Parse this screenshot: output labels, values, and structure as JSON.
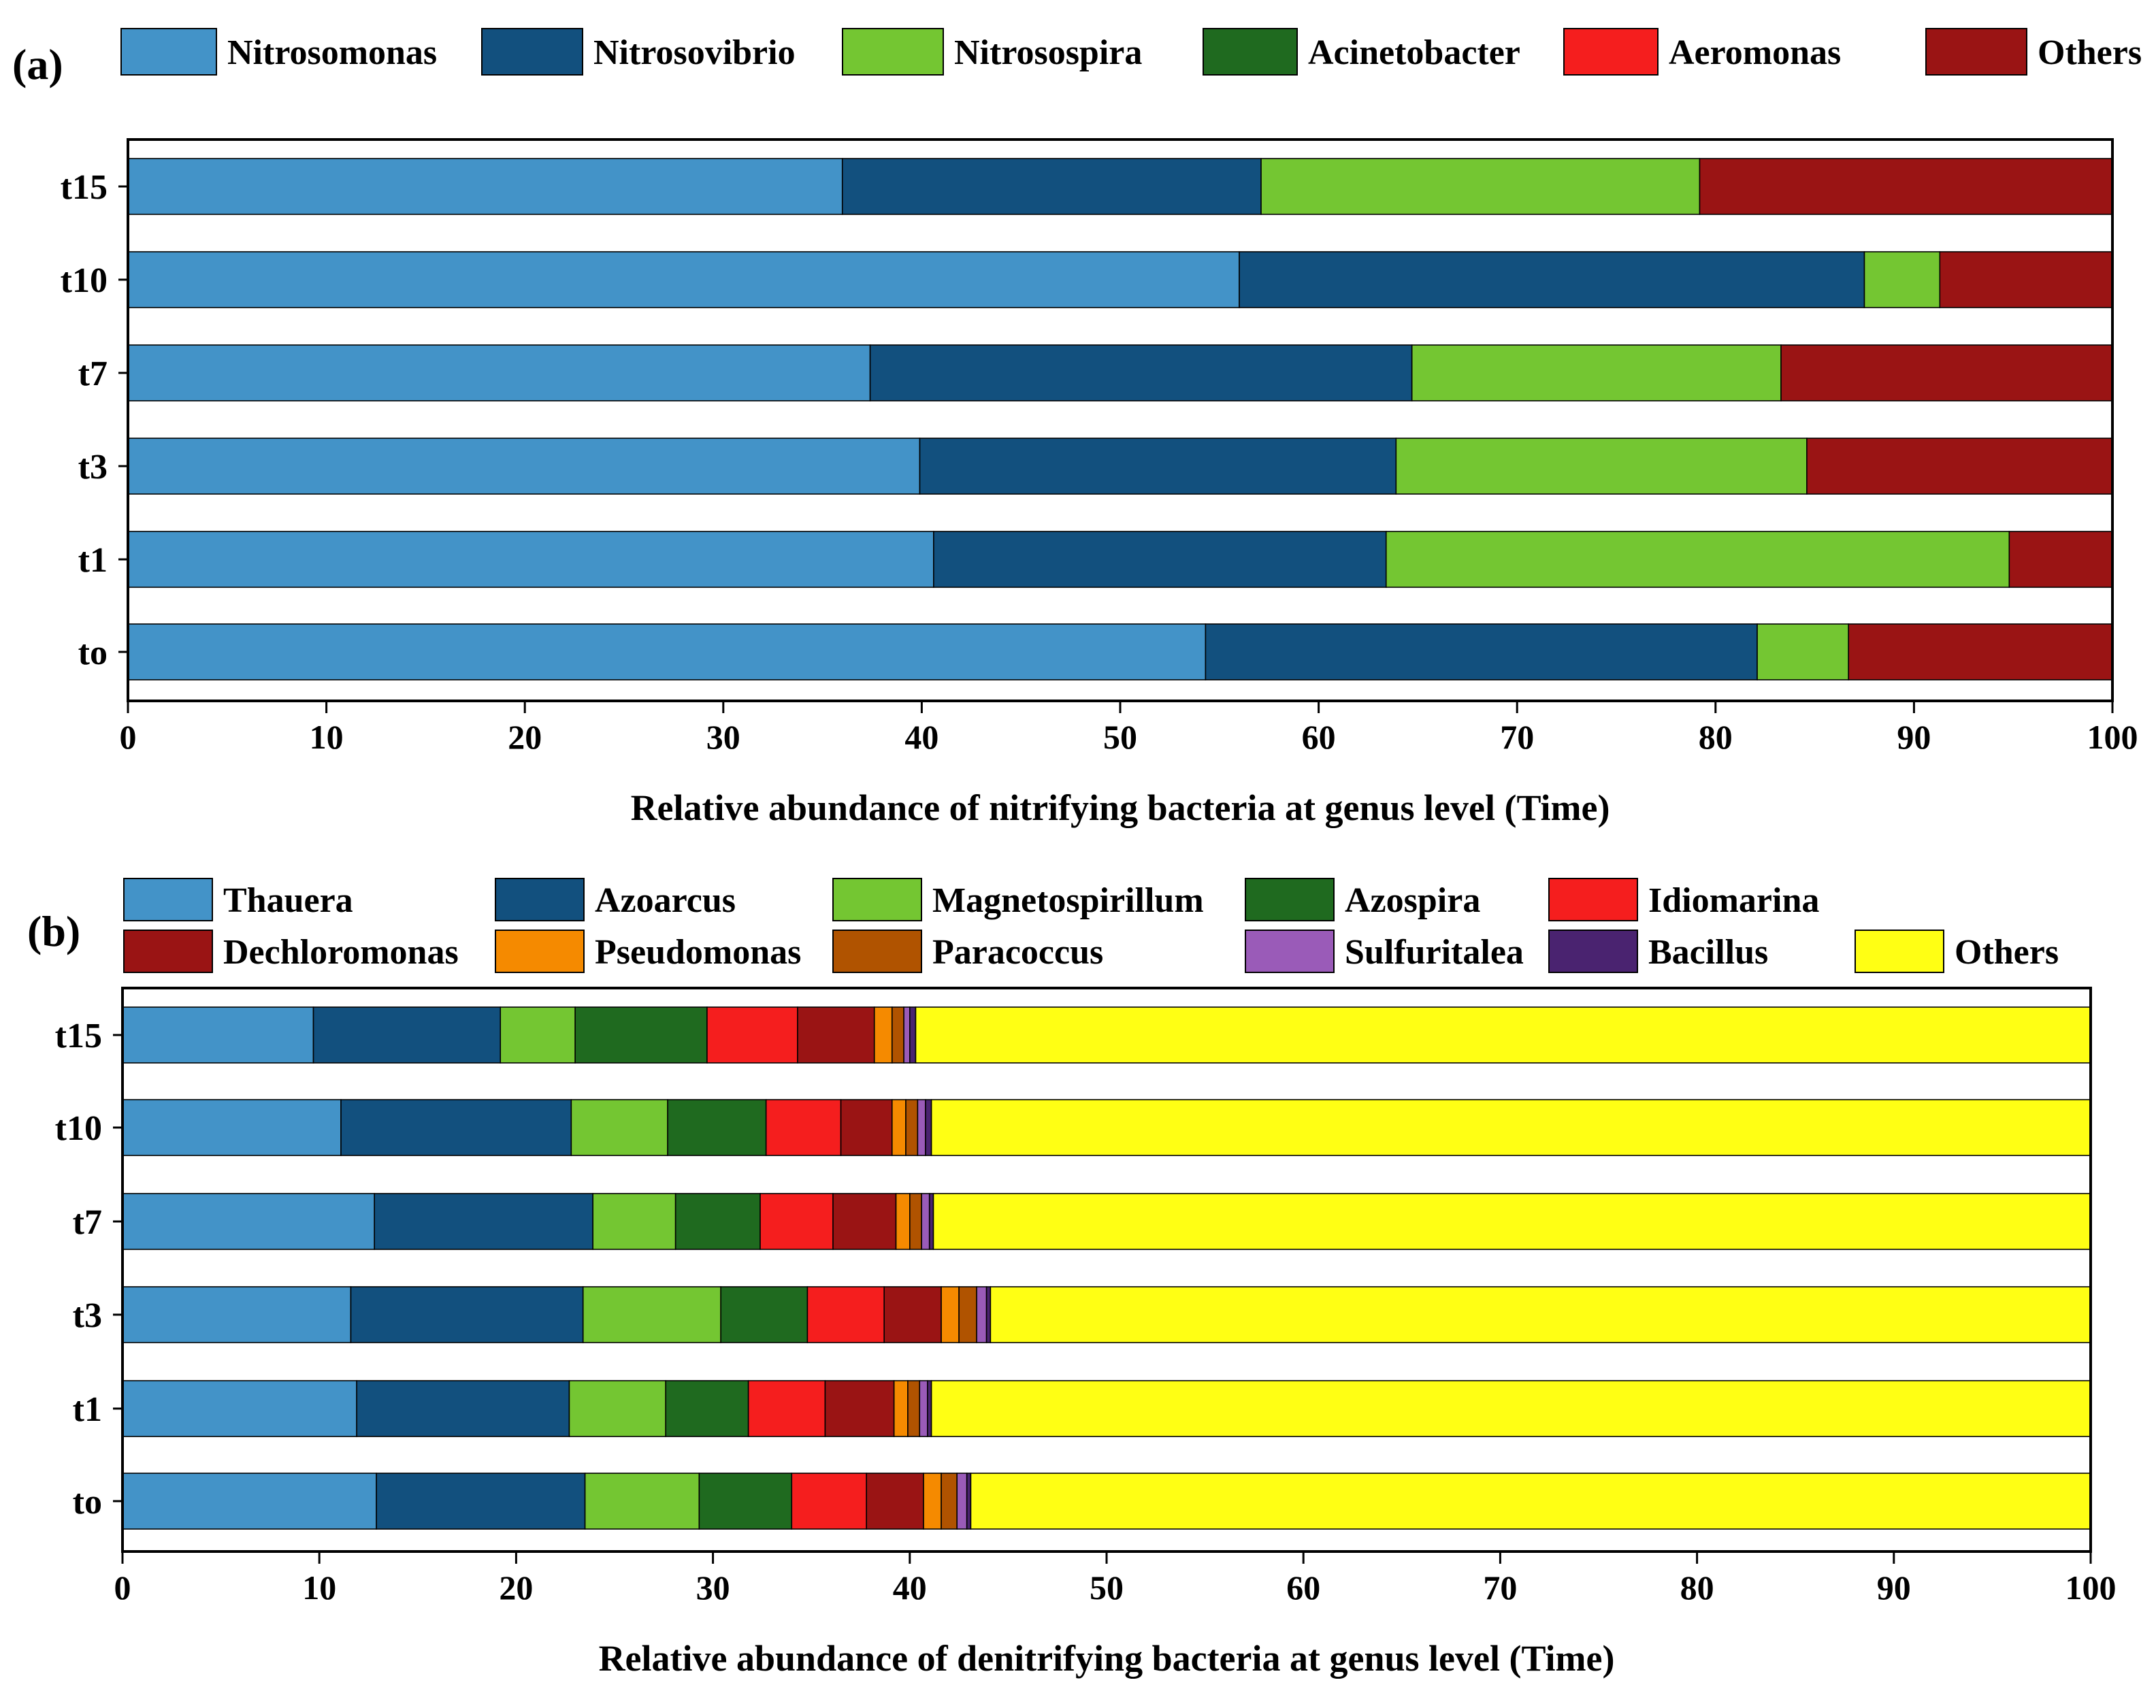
{
  "colors": {
    "Nitrosomonas": "#4393C8",
    "Nitrosovibrio": "#12507E",
    "Nitrosospira": "#74C632",
    "Acinetobacter": "#1F6A1F",
    "Aeromonas": "#F51E1E",
    "Others_a": "#9A1414",
    "Thauera": "#4393C8",
    "Azoarcus": "#12507E",
    "Magnetospirillum": "#74C632",
    "Azospira": "#1F6A1F",
    "Idiomarina": "#F51E1E",
    "Dechloromonas": "#9A1414",
    "Pseudomonas": "#F58A00",
    "Paracoccus": "#B05300",
    "Sulfuritalea": "#9A5BB8",
    "Bacillus": "#4A2370",
    "Others_b": "#FFFF14"
  },
  "chart_data": [
    {
      "panel_label": "(a)",
      "type": "bar",
      "orientation": "horizontal",
      "stacked": true,
      "categories": [
        "t15",
        "t10",
        "t7",
        "t3",
        "t1",
        "to"
      ],
      "xlabel": "Relative abundance of nitrifying bacteria at genus level (Time)",
      "xlim": [
        0,
        100
      ],
      "xticks": [
        0,
        10,
        20,
        30,
        40,
        50,
        60,
        70,
        80,
        90,
        100
      ],
      "legend": "top",
      "series": [
        {
          "name": "Nitrosomonas",
          "color_key": "Nitrosomonas",
          "values": [
            36.0,
            56.0,
            37.4,
            39.9,
            40.6,
            54.3
          ]
        },
        {
          "name": "Nitrosovibrio",
          "color_key": "Nitrosovibrio",
          "values": [
            21.1,
            31.5,
            27.3,
            24.0,
            22.8,
            27.8
          ]
        },
        {
          "name": "Nitrosospira",
          "color_key": "Nitrosospira",
          "values": [
            22.1,
            3.8,
            18.6,
            20.7,
            31.4,
            4.6
          ]
        },
        {
          "name": "Acinetobacter",
          "color_key": "Acinetobacter",
          "values": [
            0,
            0,
            0,
            0,
            0,
            0
          ]
        },
        {
          "name": "Aeromonas",
          "color_key": "Aeromonas",
          "values": [
            0,
            0,
            0,
            0,
            0,
            0
          ]
        },
        {
          "name": "Others",
          "color_key": "Others_a",
          "values": [
            20.8,
            8.7,
            16.7,
            15.4,
            5.2,
            13.3
          ]
        }
      ]
    },
    {
      "panel_label": "(b)",
      "type": "bar",
      "orientation": "horizontal",
      "stacked": true,
      "categories": [
        "t15",
        "t10",
        "t7",
        "t3",
        "t1",
        "to"
      ],
      "xlabel": "Relative abundance of denitrifying bacteria at genus level (Time)",
      "xlim": [
        0,
        100
      ],
      "xticks": [
        0,
        10,
        20,
        30,
        40,
        50,
        60,
        70,
        80,
        90,
        100
      ],
      "legend": "top",
      "series": [
        {
          "name": "Thauera",
          "color_key": "Thauera",
          "values": [
            9.7,
            11.1,
            12.8,
            11.6,
            11.9,
            12.9
          ]
        },
        {
          "name": "Azoarcus",
          "color_key": "Azoarcus",
          "values": [
            9.5,
            11.7,
            11.1,
            11.8,
            10.8,
            10.6
          ]
        },
        {
          "name": "Magnetospirillum",
          "color_key": "Magnetospirillum",
          "values": [
            3.8,
            4.9,
            4.2,
            7.0,
            4.9,
            5.8
          ]
        },
        {
          "name": "Azospira",
          "color_key": "Azospira",
          "values": [
            6.7,
            5.0,
            4.3,
            4.4,
            4.2,
            4.7
          ]
        },
        {
          "name": "Idiomarina",
          "color_key": "Idiomarina",
          "values": [
            4.6,
            3.8,
            3.7,
            3.9,
            3.9,
            3.8
          ]
        },
        {
          "name": "Dechloromonas",
          "color_key": "Dechloromonas",
          "values": [
            3.9,
            2.6,
            3.2,
            2.9,
            3.5,
            2.9
          ]
        },
        {
          "name": "Pseudomonas",
          "color_key": "Pseudomonas",
          "values": [
            0.9,
            0.7,
            0.7,
            0.9,
            0.7,
            0.9
          ]
        },
        {
          "name": "Paracoccus",
          "color_key": "Paracoccus",
          "values": [
            0.6,
            0.6,
            0.6,
            0.9,
            0.6,
            0.8
          ]
        },
        {
          "name": "Sulfuritalea",
          "color_key": "Sulfuritalea",
          "values": [
            0.3,
            0.4,
            0.4,
            0.5,
            0.4,
            0.5
          ]
        },
        {
          "name": "Bacillus",
          "color_key": "Bacillus",
          "values": [
            0.3,
            0.3,
            0.2,
            0.2,
            0.2,
            0.2
          ]
        },
        {
          "name": "Others",
          "color_key": "Others_b",
          "values": [
            59.7,
            58.9,
            58.8,
            55.9,
            58.9,
            56.9
          ]
        }
      ]
    }
  ]
}
